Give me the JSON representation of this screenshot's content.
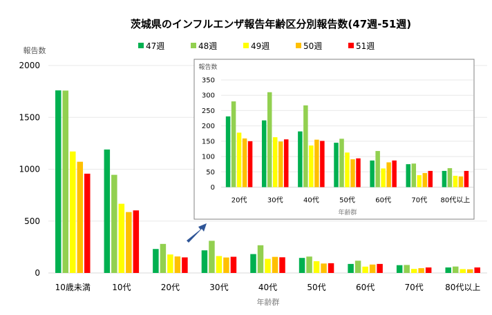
{
  "chart_data": [
    {
      "type": "bar",
      "title": "茨城県のインフルエンザ報告年齢区分別報告数(47週-51週)",
      "xlabel": "年齢群",
      "ylabel": "報告数",
      "ylim": [
        0,
        2000
      ],
      "yticks": [
        0,
        500,
        1000,
        1500,
        2000
      ],
      "grid": true,
      "legend": "top",
      "categories": [
        "10歳未満",
        "10代",
        "20代",
        "30代",
        "40代",
        "50代",
        "60代",
        "70代",
        "80代以上"
      ],
      "series": [
        {
          "name": "47週",
          "color": "#00b050",
          "values": [
            1760,
            1190,
            231,
            218,
            182,
            145,
            87,
            75,
            53
          ]
        },
        {
          "name": "48週",
          "color": "#92d050",
          "values": [
            1758,
            946,
            280,
            310,
            267,
            158,
            118,
            77,
            62
          ]
        },
        {
          "name": "49週",
          "color": "#ffff00",
          "values": [
            1171,
            667,
            178,
            163,
            136,
            113,
            61,
            39,
            37
          ]
        },
        {
          "name": "50週",
          "color": "#ffc000",
          "values": [
            1072,
            587,
            159,
            149,
            155,
            91,
            81,
            46,
            35
          ]
        },
        {
          "name": "51週",
          "color": "#ff0000",
          "values": [
            957,
            603,
            150,
            156,
            151,
            94,
            87,
            53,
            53
          ]
        }
      ]
    },
    {
      "type": "bar",
      "xlabel": "年齢群",
      "ylabel": "報告数",
      "ylim": [
        0,
        350
      ],
      "yticks": [
        0,
        50,
        100,
        150,
        200,
        250,
        300,
        350
      ],
      "grid": true,
      "categories": [
        "20代",
        "30代",
        "40代",
        "50代",
        "60代",
        "70代",
        "80代以上"
      ],
      "series": [
        {
          "name": "47週",
          "color": "#00b050",
          "values": [
            231,
            218,
            182,
            145,
            87,
            75,
            53
          ]
        },
        {
          "name": "48週",
          "color": "#92d050",
          "values": [
            280,
            310,
            267,
            158,
            118,
            77,
            62
          ]
        },
        {
          "name": "49週",
          "color": "#ffff00",
          "values": [
            178,
            163,
            136,
            113,
            61,
            39,
            37
          ]
        },
        {
          "name": "50週",
          "color": "#ffc000",
          "values": [
            159,
            149,
            155,
            91,
            81,
            46,
            35
          ]
        },
        {
          "name": "51週",
          "color": "#ff0000",
          "values": [
            150,
            156,
            151,
            94,
            87,
            53,
            53
          ]
        }
      ]
    }
  ],
  "arrow_color": "#2f5597"
}
